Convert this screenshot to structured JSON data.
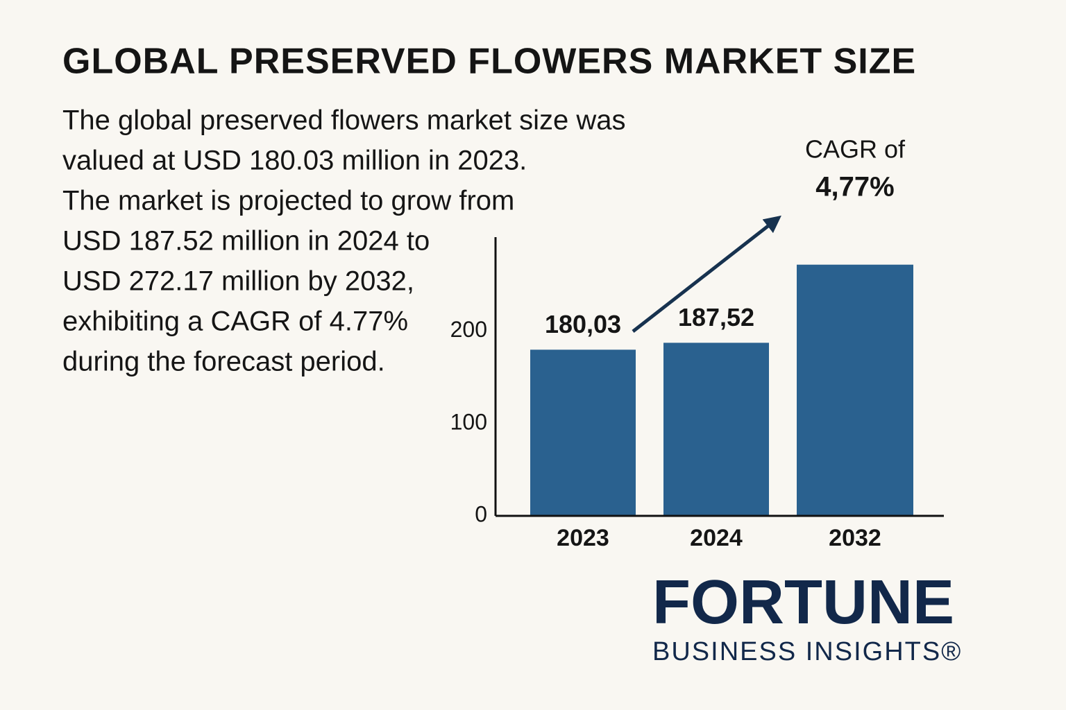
{
  "chart_data": {
    "type": "bar",
    "title": "GLOBAL PRESERVED FLOWERS MARKET SIZE",
    "description": [
      "The global preserved flowers market size was",
      "valued at USD 180.03 million in 2023.",
      "The market is projected to grow from",
      "USD 187.52 million in 2024 to",
      "USD 272.17 million by 2032,",
      "exhibiting a CAGR of 4.77%",
      "during the forecast period."
    ],
    "categories": [
      "2023",
      "2024",
      "2032"
    ],
    "values": [
      180.03,
      187.52,
      272.17
    ],
    "value_labels": [
      "180,03",
      "187,52",
      null
    ],
    "color": "#2a618f",
    "ylim": [
      0,
      302
    ],
    "yticks": [
      0,
      100,
      200
    ],
    "annotation": {
      "label": "CAGR of",
      "value": "4,77%"
    },
    "brand": {
      "name": "FORTUNE",
      "tagline": "BUSINESS INSIGHTS®"
    }
  }
}
